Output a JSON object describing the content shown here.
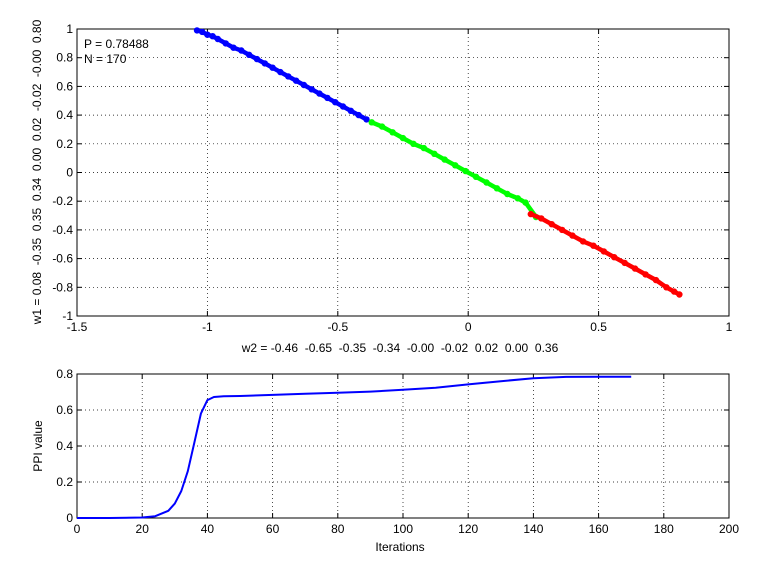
{
  "chart_data": [
    {
      "type": "scatter",
      "xlim": [
        -1.5,
        1
      ],
      "ylim": [
        -1,
        1
      ],
      "x_ticks": [
        "-1.5",
        "-1",
        "-0.5",
        "0",
        "0.5",
        "1"
      ],
      "y_ticks": [
        "-1",
        "-0.8",
        "-0.6",
        "-0.4",
        "-0.2",
        "0",
        "0.2",
        "0.4",
        "0.6",
        "0.8",
        "1"
      ],
      "xlabel": "w2 = -0.46  -0.65  -0.35  -0.34  -0.00  -0.02  0.02  0.00  0.36",
      "ylabel": "w1 = 0.08  -0.35  0.35  0.34  0.00  0.02  -0.02  -0.00  0.80",
      "grid": true,
      "annotations": [
        "P = 0.78488",
        "N = 170"
      ],
      "colors": {
        "class1": "#0000ff",
        "class2": "#00ff00",
        "class3": "#ff0000"
      },
      "series": [
        {
          "color": "#0000ff",
          "x": [
            -1.04,
            -1.02,
            -1.0,
            -0.98,
            -0.96,
            -0.93,
            -0.9,
            -0.87,
            -0.84,
            -0.81,
            -0.78,
            -0.75,
            -0.72,
            -0.69,
            -0.66,
            -0.63,
            -0.6,
            -0.57,
            -0.54,
            -0.51,
            -0.48,
            -0.45,
            -0.42,
            -0.39
          ],
          "y": [
            0.99,
            0.98,
            0.96,
            0.95,
            0.93,
            0.9,
            0.87,
            0.85,
            0.82,
            0.79,
            0.76,
            0.73,
            0.7,
            0.67,
            0.64,
            0.61,
            0.58,
            0.55,
            0.52,
            0.49,
            0.46,
            0.43,
            0.4,
            0.37
          ]
        },
        {
          "color": "#00ff00",
          "x": [
            -0.37,
            -0.33,
            -0.29,
            -0.25,
            -0.21,
            -0.17,
            -0.13,
            -0.09,
            -0.05,
            -0.01,
            0.03,
            0.07,
            0.11,
            0.15,
            0.19,
            0.22,
            0.26
          ],
          "y": [
            0.35,
            0.32,
            0.28,
            0.24,
            0.2,
            0.17,
            0.13,
            0.09,
            0.05,
            0.01,
            -0.03,
            -0.07,
            -0.11,
            -0.15,
            -0.18,
            -0.21,
            -0.31
          ]
        },
        {
          "color": "#ff0000",
          "x": [
            0.24,
            0.28,
            0.32,
            0.36,
            0.4,
            0.44,
            0.48,
            0.52,
            0.56,
            0.6,
            0.64,
            0.68,
            0.72,
            0.76,
            0.79,
            0.81
          ],
          "y": [
            -0.29,
            -0.32,
            -0.36,
            -0.4,
            -0.44,
            -0.48,
            -0.51,
            -0.55,
            -0.59,
            -0.63,
            -0.67,
            -0.71,
            -0.75,
            -0.8,
            -0.83,
            -0.85
          ]
        }
      ]
    },
    {
      "type": "line",
      "xlim": [
        0,
        200
      ],
      "ylim": [
        0,
        0.8
      ],
      "x_ticks": [
        "0",
        "20",
        "40",
        "60",
        "80",
        "100",
        "120",
        "140",
        "160",
        "180",
        "200"
      ],
      "y_ticks": [
        "0",
        "0.2",
        "0.4",
        "0.6",
        "0.8"
      ],
      "xlabel": "Iterations",
      "ylabel": "PPI value",
      "grid": true,
      "series": [
        {
          "color": "#0000ff",
          "x": [
            0,
            10,
            20,
            24,
            28,
            30,
            32,
            34,
            36,
            38,
            40,
            42,
            45,
            50,
            60,
            70,
            80,
            90,
            100,
            110,
            120,
            130,
            140,
            150,
            160,
            170
          ],
          "y": [
            0.0,
            0.0,
            0.003,
            0.01,
            0.04,
            0.08,
            0.15,
            0.26,
            0.42,
            0.58,
            0.655,
            0.672,
            0.676,
            0.678,
            0.684,
            0.69,
            0.696,
            0.702,
            0.712,
            0.724,
            0.742,
            0.76,
            0.776,
            0.784,
            0.785,
            0.785
          ]
        }
      ]
    }
  ]
}
